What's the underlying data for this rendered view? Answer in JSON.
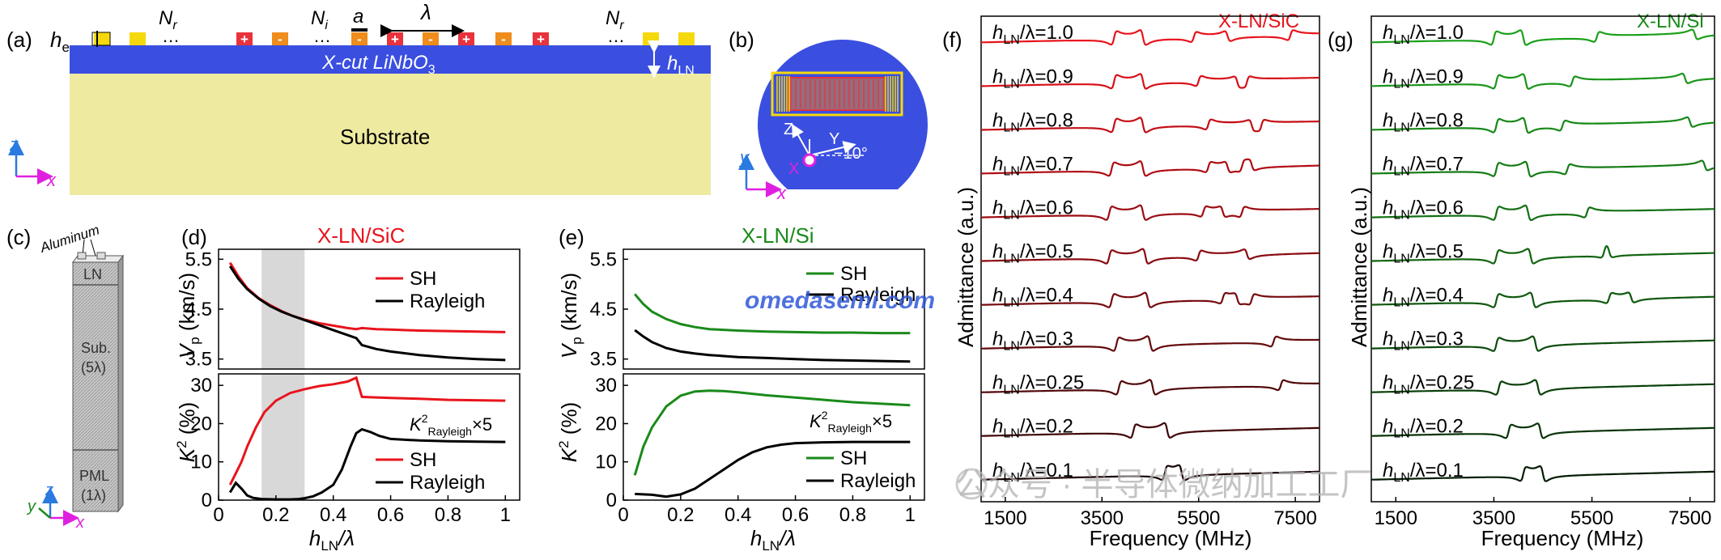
{
  "panels": {
    "a": {
      "label": "(a)",
      "he": "h",
      "he_sub": "e",
      "nr_left": "N",
      "nr_left_sub": "r",
      "ni": "N",
      "ni_sub": "i",
      "a": "a",
      "lambda": "λ",
      "nr_right": "N",
      "nr_right_sub": "r",
      "hln": "h",
      "hln_sub": "LN",
      "layer": "X-cut LiNbO",
      "layer_sub": "3",
      "substrate": "Substrate",
      "plus": "+",
      "minus": "-",
      "dots": "…",
      "axis_z": "z",
      "axis_x": "x"
    },
    "b": {
      "label": "(b)",
      "z": "Z",
      "y": "Y",
      "angle": "−10°",
      "x": "X",
      "axis_y": "y",
      "axis_x": "x"
    },
    "c": {
      "label": "(c)",
      "aluminum": "Aluminum",
      "ln": "LN",
      "sub": "Sub.",
      "sub_t": "(5λ)",
      "pml": "PML",
      "pml_t": "(1λ)",
      "axis_z": "z",
      "axis_y": "y",
      "axis_x": "x"
    },
    "d": {
      "label": "(d)",
      "title": "X-LN/SiC",
      "legend_sh": "SH",
      "legend_ray": "Rayleigh",
      "k2_note": "K",
      "k2_note_sup": "2",
      "k2_note_sub": "Rayleigh",
      "k2_note_tail": "×5",
      "ylab_v": "V",
      "ylab_v_sub": "p",
      "ylab_v_tail": " (km/s)",
      "ylab_k": "K",
      "ylab_k_sup": "2",
      "ylab_k_tail": " (%)",
      "xlab": "h",
      "xlab_sub": "LN",
      "xlab_tail": "/λ"
    },
    "e": {
      "label": "(e)",
      "title": "X-LN/Si",
      "legend_sh": "SH",
      "legend_ray": "Rayleigh",
      "k2_note": "K",
      "k2_note_sup": "2",
      "k2_note_sub": "Rayleigh",
      "k2_note_tail": "×5",
      "ylab_v": "V",
      "ylab_v_sub": "p",
      "ylab_v_tail": " (km/s)",
      "ylab_k": "K",
      "ylab_k_sup": "2",
      "ylab_k_tail": " (%)",
      "xlab": "h",
      "xlab_sub": "LN",
      "xlab_tail": "/λ"
    },
    "f": {
      "label": "(f)",
      "title": "X-LN/SiC",
      "ylabel": "Admittance (a.u.)",
      "xlabel": "Frequency (MHz)",
      "xticks": [
        "1500",
        "3500",
        "5500",
        "7500"
      ]
    },
    "g": {
      "label": "(g)",
      "title": "X-LN/Si",
      "ylabel": "Admittance (a.u.)",
      "xlabel": "Frequency (MHz)",
      "xticks": [
        "1500",
        "3500",
        "5500",
        "7500"
      ]
    }
  },
  "watermark_url": "omedasemi.com",
  "watermark_wechat": "公众号 · 半导体微纳加工工厂",
  "colors": {
    "sic": "#e8141c",
    "si": "#1a8a1a",
    "rayleigh": "#000000",
    "ln_blue": "#3a4fe0",
    "substrate": "#eeeaa0",
    "finger_yellow": "#f5d90c",
    "finger_orange": "#f08c1c",
    "finger_red": "#e8323c",
    "shade": "#d8d8d8"
  },
  "chart_data": [
    {
      "type": "line",
      "panel": "d-top",
      "xlabel": "hLN/λ",
      "ylabel": "Vp (km/s)",
      "xlim": [
        0,
        1.05
      ],
      "ylim": [
        3.3,
        5.7
      ],
      "yticks": [
        3.5,
        4.5,
        5.5
      ],
      "shaded": [
        0.15,
        0.3
      ],
      "series": [
        {
          "name": "SH",
          "x": [
            0.04,
            0.07,
            0.1,
            0.14,
            0.18,
            0.22,
            0.26,
            0.3,
            0.35,
            0.4,
            0.45,
            0.48,
            0.5,
            0.55,
            0.6,
            0.7,
            0.8,
            0.9,
            1.0
          ],
          "y": [
            5.43,
            5.15,
            4.92,
            4.72,
            4.58,
            4.46,
            4.36,
            4.29,
            4.22,
            4.17,
            4.12,
            4.1,
            4.12,
            4.1,
            4.09,
            4.07,
            4.06,
            4.05,
            4.04
          ]
        },
        {
          "name": "Rayleigh",
          "x": [
            0.04,
            0.07,
            0.1,
            0.14,
            0.18,
            0.22,
            0.26,
            0.3,
            0.35,
            0.4,
            0.45,
            0.48,
            0.5,
            0.55,
            0.6,
            0.7,
            0.8,
            0.9,
            1.0
          ],
          "y": [
            5.36,
            5.1,
            4.9,
            4.71,
            4.56,
            4.45,
            4.36,
            4.28,
            4.18,
            4.08,
            3.98,
            3.92,
            3.78,
            3.7,
            3.65,
            3.58,
            3.53,
            3.5,
            3.48
          ]
        }
      ]
    },
    {
      "type": "line",
      "panel": "d-bottom",
      "xlabel": "hLN/λ",
      "ylabel": "K2 (%)",
      "xlim": [
        0,
        1.05
      ],
      "ylim": [
        0,
        33
      ],
      "yticks": [
        0,
        10,
        20,
        30
      ],
      "xticks": [
        0,
        0.2,
        0.4,
        0.6,
        0.8,
        1.0
      ],
      "shaded": [
        0.15,
        0.3
      ],
      "series": [
        {
          "name": "SH",
          "x": [
            0.04,
            0.06,
            0.08,
            0.1,
            0.13,
            0.16,
            0.2,
            0.25,
            0.3,
            0.35,
            0.4,
            0.45,
            0.48,
            0.5,
            0.52,
            0.6,
            0.7,
            0.8,
            0.9,
            1.0
          ],
          "y": [
            4,
            7,
            10,
            14,
            19,
            23,
            26,
            28,
            29,
            29.8,
            30.3,
            31,
            32,
            27,
            26.9,
            26.7,
            26.5,
            26.2,
            26.1,
            26
          ]
        },
        {
          "name": "Rayleigh",
          "x": [
            0.04,
            0.06,
            0.08,
            0.1,
            0.12,
            0.15,
            0.2,
            0.25,
            0.28,
            0.3,
            0.33,
            0.36,
            0.4,
            0.43,
            0.46,
            0.48,
            0.5,
            0.53,
            0.56,
            0.6,
            0.7,
            0.8,
            0.9,
            1.0
          ],
          "y": [
            2,
            4.5,
            3,
            1.2,
            0.6,
            0.3,
            0.2,
            0.2,
            0.3,
            0.5,
            1,
            2,
            4,
            8,
            14,
            17.5,
            18.5,
            17.8,
            16.8,
            16,
            15.6,
            15.4,
            15.3,
            15.2
          ]
        }
      ]
    },
    {
      "type": "line",
      "panel": "e-top",
      "xlabel": "hLN/λ",
      "ylabel": "Vp (km/s)",
      "xlim": [
        0,
        1.05
      ],
      "ylim": [
        3.3,
        5.7
      ],
      "yticks": [
        3.5,
        4.5,
        5.5
      ],
      "series": [
        {
          "name": "SH",
          "x": [
            0.04,
            0.07,
            0.1,
            0.15,
            0.2,
            0.25,
            0.3,
            0.4,
            0.5,
            0.6,
            0.7,
            0.8,
            0.9,
            1.0
          ],
          "y": [
            4.8,
            4.6,
            4.45,
            4.3,
            4.2,
            4.14,
            4.1,
            4.07,
            4.05,
            4.04,
            4.03,
            4.03,
            4.02,
            4.02
          ]
        },
        {
          "name": "Rayleigh",
          "x": [
            0.04,
            0.07,
            0.1,
            0.15,
            0.2,
            0.25,
            0.3,
            0.4,
            0.5,
            0.6,
            0.7,
            0.8,
            0.9,
            1.0
          ],
          "y": [
            4.08,
            3.95,
            3.84,
            3.72,
            3.65,
            3.61,
            3.58,
            3.54,
            3.52,
            3.5,
            3.48,
            3.47,
            3.46,
            3.45
          ]
        }
      ]
    },
    {
      "type": "line",
      "panel": "e-bottom",
      "xlabel": "hLN/λ",
      "ylabel": "K2 (%)",
      "xlim": [
        0,
        1.05
      ],
      "ylim": [
        0,
        33
      ],
      "yticks": [
        0,
        10,
        20,
        30
      ],
      "xticks": [
        0,
        0.2,
        0.4,
        0.6,
        0.8,
        1.0
      ],
      "series": [
        {
          "name": "SH",
          "x": [
            0.04,
            0.07,
            0.1,
            0.15,
            0.2,
            0.25,
            0.3,
            0.35,
            0.4,
            0.5,
            0.6,
            0.7,
            0.8,
            0.9,
            1.0
          ],
          "y": [
            6.5,
            14,
            19,
            24.5,
            27.3,
            28.4,
            28.6,
            28.5,
            28.2,
            27.4,
            26.8,
            26.2,
            25.6,
            25.2,
            24.8
          ]
        },
        {
          "name": "Rayleigh",
          "x": [
            0.04,
            0.07,
            0.1,
            0.15,
            0.2,
            0.25,
            0.3,
            0.35,
            0.4,
            0.45,
            0.5,
            0.55,
            0.6,
            0.7,
            0.8,
            0.9,
            1.0
          ],
          "y": [
            1.6,
            1.5,
            1.4,
            0.9,
            1.5,
            3,
            5.5,
            8,
            10.5,
            12.5,
            13.8,
            14.5,
            14.9,
            15.1,
            15.2,
            15.2,
            15.2
          ]
        }
      ]
    },
    {
      "type": "line",
      "panel": "f",
      "xlabel": "Frequency (MHz)",
      "ylabel": "Admittance (a.u.)",
      "xlim": [
        1000,
        8000
      ],
      "xticks": [
        1500,
        3500,
        5500,
        7500
      ],
      "stacked": true,
      "series": [
        {
          "name": "hLN/λ=1.0",
          "label_pre": "h",
          "label_sub": "LN",
          "label_post": "/λ=1.0",
          "color": "#e8141c",
          "peaks": [
            3750,
            4350,
            5400,
            6100,
            7400
          ]
        },
        {
          "name": "hLN/λ=0.9",
          "label_pre": "h",
          "label_sub": "LN",
          "label_post": "/λ=0.9",
          "color": "#d81018",
          "peaks": [
            3750,
            4350,
            5500,
            6300,
            6500
          ]
        },
        {
          "name": "hLN/λ=0.8",
          "label_pre": "h",
          "label_sub": "LN",
          "label_post": "/λ=0.8",
          "color": "#c40e16",
          "peaks": [
            3750,
            4350,
            5700,
            6600,
            6800
          ]
        },
        {
          "name": "hLN/λ=0.7",
          "label_pre": "h",
          "label_sub": "LN",
          "label_post": "/λ=0.7",
          "color": "#b00c14",
          "peaks": [
            3700,
            4350,
            5700,
            6100,
            6400,
            6600
          ]
        },
        {
          "name": "hLN/λ=0.6",
          "label_pre": "h",
          "label_sub": "LN",
          "label_post": "/λ=0.6",
          "color": "#9c0c12",
          "peaks": [
            3650,
            4350,
            5600,
            6000,
            6400
          ]
        },
        {
          "name": "hLN/λ=0.5",
          "label_pre": "h",
          "label_sub": "LN",
          "label_post": "/λ=0.5",
          "color": "#8a0a10",
          "peaks": [
            3650,
            4400,
            5500,
            6500
          ]
        },
        {
          "name": "hLN/λ=0.4",
          "label_pre": "h",
          "label_sub": "LN",
          "label_post": "/λ=0.4",
          "color": "#760a0e",
          "peaks": [
            3700,
            4450,
            6000,
            6300,
            6600
          ]
        },
        {
          "name": "hLN/λ=0.3",
          "label_pre": "h",
          "label_sub": "LN",
          "label_post": "/λ=0.3",
          "color": "#640a0c",
          "peaks": [
            3800,
            4500,
            7050
          ]
        },
        {
          "name": "hLN/λ=0.25",
          "label_pre": "h",
          "label_sub": "LN",
          "label_post": "/λ=0.25",
          "color": "#52080a",
          "peaks": [
            3850,
            4550,
            7200
          ]
        },
        {
          "name": "hLN/λ=0.2",
          "label_pre": "h",
          "label_sub": "LN",
          "label_post": "/λ=0.2",
          "color": "#400608",
          "peaks": [
            4150,
            4850
          ]
        },
        {
          "name": "hLN/λ=0.1",
          "label_pre": "h",
          "label_sub": "LN",
          "label_post": "/λ=0.1",
          "color": "#1a0404",
          "peaks": [
            4800,
            5150
          ]
        }
      ]
    },
    {
      "type": "line",
      "panel": "g",
      "xlabel": "Frequency (MHz)",
      "ylabel": "Admittance (a.u.)",
      "xlim": [
        1000,
        8000
      ],
      "xticks": [
        1500,
        3500,
        5500,
        7500
      ],
      "stacked": true,
      "series": [
        {
          "name": "hLN/λ=1.0",
          "label_pre": "h",
          "label_sub": "LN",
          "label_post": "/λ=1.0",
          "color": "#1aa01a",
          "peaks": [
            3500,
            4100,
            5600,
            7600
          ]
        },
        {
          "name": "hLN/λ=0.9",
          "label_pre": "h",
          "label_sub": "LN",
          "label_post": "/λ=0.9",
          "color": "#189418",
          "peaks": [
            3550,
            4150,
            5100,
            7400
          ]
        },
        {
          "name": "hLN/λ=0.8",
          "label_pre": "h",
          "label_sub": "LN",
          "label_post": "/λ=0.8",
          "color": "#168816",
          "peaks": [
            3550,
            4150,
            4900,
            7500
          ]
        },
        {
          "name": "hLN/λ=0.7",
          "label_pre": "h",
          "label_sub": "LN",
          "label_post": "/λ=0.7",
          "color": "#147c14",
          "peaks": [
            3550,
            4200,
            5000,
            7800
          ]
        },
        {
          "name": "hLN/λ=0.6",
          "label_pre": "h",
          "label_sub": "LN",
          "label_post": "/λ=0.6",
          "color": "#127012",
          "peaks": [
            3550,
            4200,
            5400
          ]
        },
        {
          "name": "hLN/λ=0.5",
          "label_pre": "h",
          "label_sub": "LN",
          "label_post": "/λ=0.5",
          "color": "#106410",
          "peaks": [
            3550,
            4250,
            5750,
            5850
          ]
        },
        {
          "name": "hLN/λ=0.4",
          "label_pre": "h",
          "label_sub": "LN",
          "label_post": "/λ=0.4",
          "color": "#0e580e",
          "peaks": [
            3550,
            4300,
            5850,
            6300
          ]
        },
        {
          "name": "hLN/λ=0.3",
          "label_pre": "h",
          "label_sub": "LN",
          "label_post": "/λ=0.3",
          "color": "#0c4c0c",
          "peaks": [
            3550,
            4350
          ]
        },
        {
          "name": "hLN/λ=0.25",
          "label_pre": "h",
          "label_sub": "LN",
          "label_post": "/λ=0.25",
          "color": "#0a400a",
          "peaks": [
            3600,
            4400
          ]
        },
        {
          "name": "hLN/λ=0.2",
          "label_pre": "h",
          "label_sub": "LN",
          "label_post": "/λ=0.2",
          "color": "#083408",
          "peaks": [
            3800,
            4450
          ]
        },
        {
          "name": "hLN/λ=0.1",
          "label_pre": "h",
          "label_sub": "LN",
          "label_post": "/λ=0.1",
          "color": "#041c04",
          "peaks": [
            4100,
            4500
          ]
        }
      ]
    }
  ]
}
